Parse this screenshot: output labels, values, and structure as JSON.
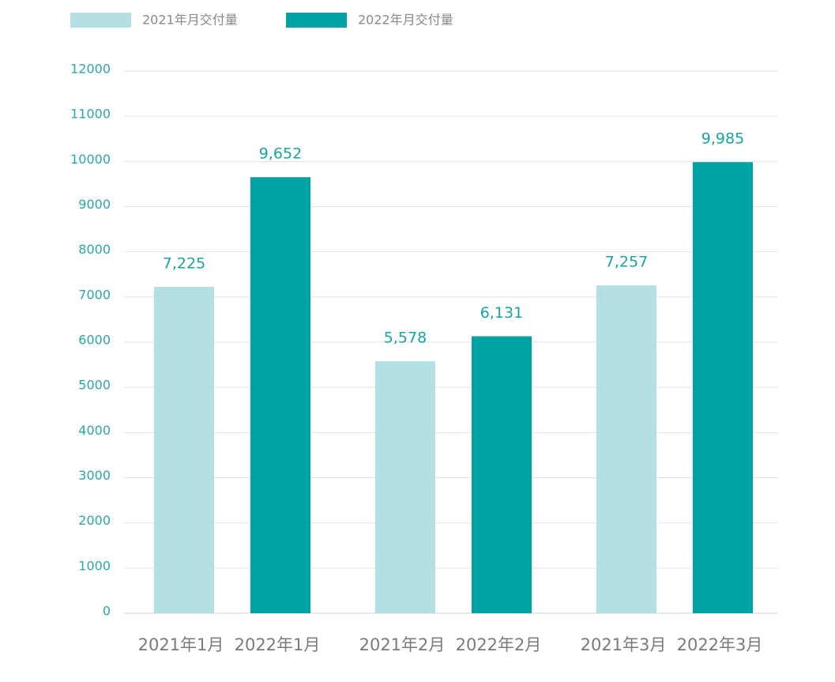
{
  "chart_data": {
    "type": "bar",
    "series": [
      {
        "name": "2021年月交付量",
        "color": "#b3e0e5",
        "labels": [
          "2021年1月",
          "2021年2月",
          "2021年3月"
        ],
        "values": [
          7225,
          5578,
          7257
        ],
        "value_labels": [
          "7,225",
          "5,578",
          "7,257"
        ]
      },
      {
        "name": "2022年月交付量",
        "color": "#00a3a3",
        "labels": [
          "2022年1月",
          "2022年2月",
          "2022年3月"
        ],
        "values": [
          9652,
          6131,
          9985
        ],
        "value_labels": [
          "9,652",
          "6,131",
          "9,985"
        ]
      }
    ],
    "ylim": [
      0,
      12000
    ],
    "yticks": [
      0,
      1000,
      2000,
      3000,
      4000,
      5000,
      6000,
      7000,
      8000,
      9000,
      10000,
      11000,
      12000
    ],
    "grid": true
  }
}
